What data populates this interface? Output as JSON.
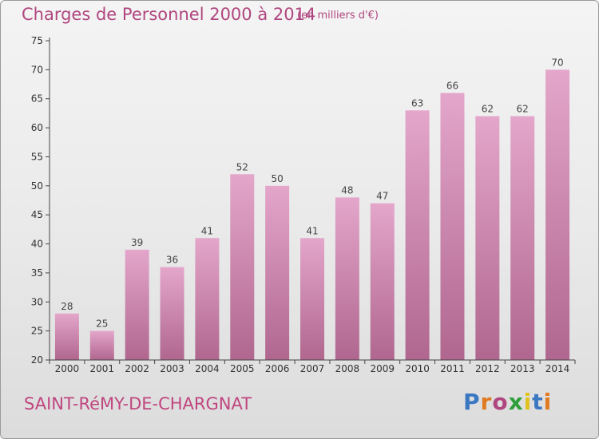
{
  "header": {
    "title": "Charges de Personnel 2000 à 2014",
    "subtitle": "(en milliers d'€)"
  },
  "footer": {
    "commune": "SAINT-RéMY-DE-CHARGNAT",
    "logo_text": "Proxiti",
    "logo_colors": [
      "#3a78c2",
      "#e07a1f",
      "#b0467f",
      "#2e9e3a",
      "#e0c21f",
      "#3a78c2",
      "#e07a1f"
    ]
  },
  "chart_data": {
    "type": "bar",
    "title": "Charges de Personnel 2000 à 2014",
    "subtitle": "(en milliers d'€)",
    "xlabel": "",
    "ylabel": "",
    "categories": [
      "2000",
      "2001",
      "2002",
      "2003",
      "2004",
      "2005",
      "2006",
      "2007",
      "2008",
      "2009",
      "2010",
      "2011",
      "2012",
      "2013",
      "2014"
    ],
    "values": [
      28,
      25,
      39,
      36,
      41,
      52,
      50,
      41,
      48,
      47,
      63,
      66,
      62,
      62,
      70
    ],
    "ylim": [
      20,
      75
    ],
    "yticks": [
      20,
      25,
      30,
      35,
      40,
      45,
      50,
      55,
      60,
      65,
      70,
      75
    ],
    "grid": false,
    "bar_color": "#d27fae",
    "axis_color": "#444444"
  }
}
